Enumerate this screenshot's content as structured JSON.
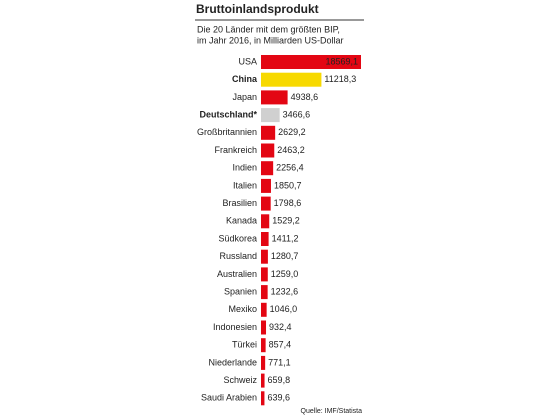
{
  "chart_data": {
    "type": "bar",
    "orientation": "horizontal",
    "title": "Bruttoinlandsprodukt",
    "subtitle": [
      "Die 20 Länder mit dem größten BIP,",
      "im Jahr 2016, in Milliarden US-Dollar"
    ],
    "source": "Quelle: IMF/Statista",
    "categories": [
      "USA",
      "China",
      "Japan",
      "Deutschland*",
      "Großbritannien",
      "Frankreich",
      "Indien",
      "Italien",
      "Brasilien",
      "Kanada",
      "Südkorea",
      "Russland",
      "Australien",
      "Spanien",
      "Mexiko",
      "Indonesien",
      "Türkei",
      "Niederlande",
      "Schweiz",
      "Saudi Arabien"
    ],
    "values": [
      18569.1,
      11218.3,
      4938.6,
      3466.6,
      2629.2,
      2463.2,
      2256.4,
      1850.7,
      1798.6,
      1529.2,
      1411.2,
      1280.7,
      1259.0,
      1232.6,
      1046.0,
      932.4,
      857.4,
      771.1,
      659.8,
      639.6
    ],
    "value_labels": [
      "18569,1",
      "11218,3",
      "4938,6",
      "3466,6",
      "2629,2",
      "2463,2",
      "2256,4",
      "1850,7",
      "1798,6",
      "1529,2",
      "1411,2",
      "1280,7",
      "1259,0",
      "1232,6",
      "1046,0",
      "932,4",
      "857,4",
      "771,1",
      "659,8",
      "639,6"
    ],
    "colors": [
      "#e30613",
      "#f7d900",
      "#e30613",
      "#d0d0d0",
      "#e30613",
      "#e30613",
      "#e30613",
      "#e30613",
      "#e30613",
      "#e30613",
      "#e30613",
      "#e30613",
      "#e30613",
      "#e30613",
      "#e30613",
      "#e30613",
      "#e30613",
      "#e30613",
      "#e30613",
      "#e30613"
    ],
    "bold_categories": [
      1,
      3
    ]
  }
}
